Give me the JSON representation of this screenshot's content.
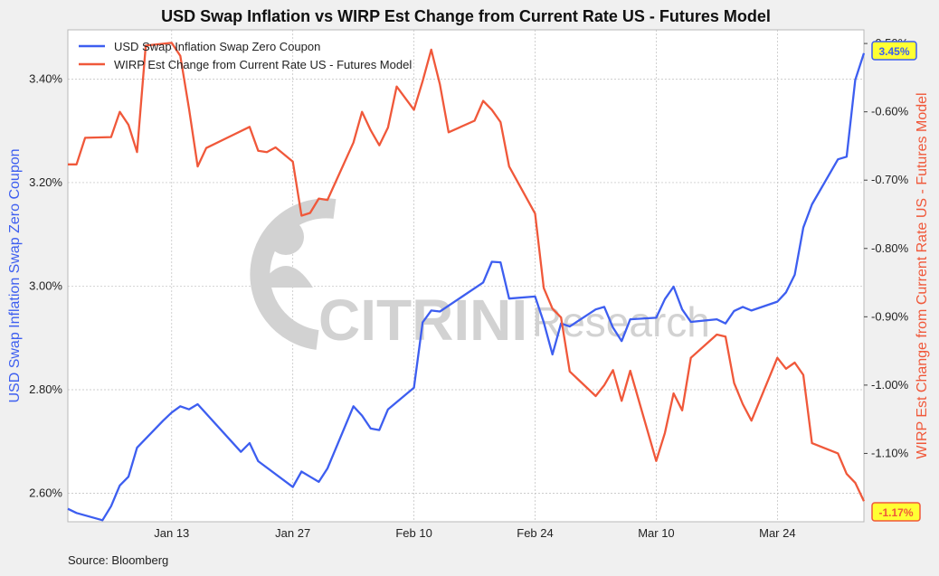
{
  "colors": {
    "blue": "#3d5ef0",
    "red": "#f0583a",
    "badge_fill": "#ffff33",
    "grid": "#bdbdbd",
    "watermark": "#d2d2d2"
  },
  "footer": {
    "source": "Source: Bloomberg"
  },
  "watermark": {
    "brand": "CITRINI",
    "suffix": "Research"
  },
  "chart_data": {
    "type": "line",
    "title": "USD Swap Inflation vs WIRP Est Change from Current Rate US - Futures Model",
    "xlabel": "",
    "x_ticks": [
      "Jan 13",
      "Jan 27",
      "Feb 10",
      "Feb 24",
      "Mar 10",
      "Mar 24"
    ],
    "x_range": [
      "Jan 1",
      "Apr 1"
    ],
    "grid": true,
    "legend_position": "top-left",
    "left_axis": {
      "label": "USD Swap Inflation Swap Zero Coupon",
      "ticks": [
        "2.60%",
        "2.80%",
        "3.00%",
        "3.20%",
        "3.40%"
      ],
      "ylim": [
        2.545,
        3.495
      ]
    },
    "right_axis": {
      "label": "WIRP Est Change from Current Rate US - Futures Model",
      "ticks": [
        "-0.50%",
        "-0.60%",
        "-0.70%",
        "-0.80%",
        "-0.90%",
        "-1.00%",
        "-1.10%"
      ],
      "ylim": [
        -1.2,
        -0.48
      ]
    },
    "series": [
      {
        "name": "USD Swap Inflation Swap Zero Coupon",
        "axis": "left",
        "last_label": "3.45%",
        "points": [
          [
            "Jan 1",
            2.57
          ],
          [
            "Jan 2",
            2.562
          ],
          [
            "Jan 5",
            2.548
          ],
          [
            "Jan 6",
            2.575
          ],
          [
            "Jan 7",
            2.615
          ],
          [
            "Jan 8",
            2.632
          ],
          [
            "Jan 9",
            2.688
          ],
          [
            "Jan 12",
            2.74
          ],
          [
            "Jan 13",
            2.756
          ],
          [
            "Jan 14",
            2.768
          ],
          [
            "Jan 15",
            2.762
          ],
          [
            "Jan 16",
            2.772
          ],
          [
            "Jan 21",
            2.68
          ],
          [
            "Jan 22",
            2.697
          ],
          [
            "Jan 23",
            2.662
          ],
          [
            "Jan 27",
            2.612
          ],
          [
            "Jan 28",
            2.642
          ],
          [
            "Jan 29",
            2.632
          ],
          [
            "Jan 30",
            2.622
          ],
          [
            "Jan 31",
            2.648
          ],
          [
            "Feb 3",
            2.768
          ],
          [
            "Feb 4",
            2.75
          ],
          [
            "Feb 5",
            2.725
          ],
          [
            "Feb 6",
            2.722
          ],
          [
            "Feb 7",
            2.762
          ],
          [
            "Feb 10",
            2.804
          ],
          [
            "Feb 11",
            2.93
          ],
          [
            "Feb 12",
            2.953
          ],
          [
            "Feb 13",
            2.951
          ],
          [
            "Feb 18",
            3.007
          ],
          [
            "Feb 19",
            3.047
          ],
          [
            "Feb 20",
            3.046
          ],
          [
            "Feb 21",
            2.976
          ],
          [
            "Feb 24",
            2.98
          ],
          [
            "Feb 25",
            2.93
          ],
          [
            "Feb 26",
            2.868
          ],
          [
            "Feb 27",
            2.928
          ],
          [
            "Feb 28",
            2.922
          ],
          [
            "Mar 3",
            2.955
          ],
          [
            "Mar 4",
            2.96
          ],
          [
            "Mar 5",
            2.92
          ],
          [
            "Mar 6",
            2.894
          ],
          [
            "Mar 7",
            2.936
          ],
          [
            "Mar 10",
            2.939
          ],
          [
            "Mar 11",
            2.975
          ],
          [
            "Mar 12",
            2.999
          ],
          [
            "Mar 13",
            2.955
          ],
          [
            "Mar 14",
            2.931
          ],
          [
            "Mar 17",
            2.936
          ],
          [
            "Mar 18",
            2.928
          ],
          [
            "Mar 19",
            2.952
          ],
          [
            "Mar 20",
            2.96
          ],
          [
            "Mar 21",
            2.953
          ],
          [
            "Mar 24",
            2.97
          ],
          [
            "Mar 25",
            2.988
          ],
          [
            "Mar 26",
            3.022
          ],
          [
            "Mar 27",
            3.113
          ],
          [
            "Mar 28",
            3.158
          ],
          [
            "Mar 31",
            3.245
          ],
          [
            "Apr 1",
            3.25
          ],
          [
            "Apr 2",
            3.398
          ],
          [
            "Apr 3",
            3.45
          ]
        ]
      },
      {
        "name": "WIRP Est Change from Current Rate US - Futures Model",
        "axis": "right",
        "last_label": "-1.17%",
        "points": [
          [
            "Jan 1",
            -0.677
          ],
          [
            "Jan 2",
            -0.677
          ],
          [
            "Jan 3",
            -0.638
          ],
          [
            "Jan 6",
            -0.637
          ],
          [
            "Jan 7",
            -0.6
          ],
          [
            "Jan 8",
            -0.619
          ],
          [
            "Jan 9",
            -0.659
          ],
          [
            "Jan 10",
            -0.503
          ],
          [
            "Jan 13",
            -0.499
          ],
          [
            "Jan 14",
            -0.518
          ],
          [
            "Jan 15",
            -0.595
          ],
          [
            "Jan 16",
            -0.68
          ],
          [
            "Jan 17",
            -0.653
          ],
          [
            "Jan 22",
            -0.622
          ],
          [
            "Jan 23",
            -0.657
          ],
          [
            "Jan 24",
            -0.659
          ],
          [
            "Jan 25",
            -0.652
          ],
          [
            "Jan 27",
            -0.673
          ],
          [
            "Jan 28",
            -0.752
          ],
          [
            "Jan 29",
            -0.748
          ],
          [
            "Jan 30",
            -0.727
          ],
          [
            "Jan 31",
            -0.729
          ],
          [
            "Feb 3",
            -0.645
          ],
          [
            "Feb 4",
            -0.6
          ],
          [
            "Feb 5",
            -0.627
          ],
          [
            "Feb 6",
            -0.649
          ],
          [
            "Feb 7",
            -0.623
          ],
          [
            "Feb 8",
            -0.563
          ],
          [
            "Feb 10",
            -0.597
          ],
          [
            "Feb 11",
            -0.555
          ],
          [
            "Feb 12",
            -0.509
          ],
          [
            "Feb 13",
            -0.56
          ],
          [
            "Feb 14",
            -0.63
          ],
          [
            "Feb 17",
            -0.613
          ],
          [
            "Feb 18",
            -0.584
          ],
          [
            "Feb 19",
            -0.597
          ],
          [
            "Feb 20",
            -0.615
          ],
          [
            "Feb 21",
            -0.68
          ],
          [
            "Feb 24",
            -0.749
          ],
          [
            "Feb 25",
            -0.858
          ],
          [
            "Feb 26",
            -0.888
          ],
          [
            "Feb 27",
            -0.901
          ],
          [
            "Feb 28",
            -0.98
          ],
          [
            "Mar 3",
            -1.016
          ],
          [
            "Mar 4",
            -1.0
          ],
          [
            "Mar 5",
            -0.978
          ],
          [
            "Mar 6",
            -1.023
          ],
          [
            "Mar 7",
            -0.979
          ],
          [
            "Mar 10",
            -1.111
          ],
          [
            "Mar 11",
            -1.07
          ],
          [
            "Mar 12",
            -1.012
          ],
          [
            "Mar 13",
            -1.037
          ],
          [
            "Mar 14",
            -0.96
          ],
          [
            "Mar 17",
            -0.926
          ],
          [
            "Mar 18",
            -0.929
          ],
          [
            "Mar 19",
            -0.997
          ],
          [
            "Mar 20",
            -1.028
          ],
          [
            "Mar 21",
            -1.052
          ],
          [
            "Mar 24",
            -0.96
          ],
          [
            "Mar 25",
            -0.976
          ],
          [
            "Mar 26",
            -0.967
          ],
          [
            "Mar 27",
            -0.985
          ],
          [
            "Mar 28",
            -1.085
          ],
          [
            "Mar 31",
            -1.1
          ],
          [
            "Apr 1",
            -1.13
          ],
          [
            "Apr 2",
            -1.143
          ],
          [
            "Apr 3",
            -1.17
          ]
        ]
      }
    ]
  }
}
